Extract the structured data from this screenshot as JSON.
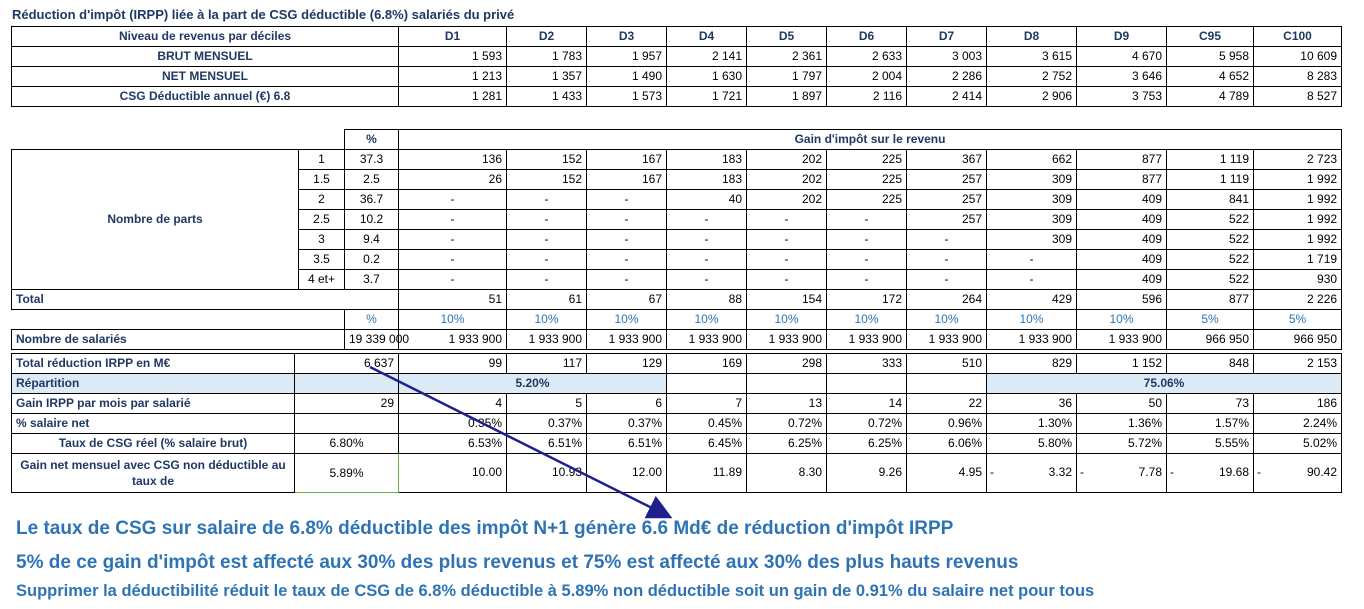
{
  "title": "Réduction d'impôt (IRPP) liée à la part de CSG déductible (6.8%) salariés du privé",
  "top_table": {
    "header_label": "Niveau de revenus par déciles",
    "columns": [
      "D1",
      "D2",
      "D3",
      "D4",
      "D5",
      "D6",
      "D7",
      "D8",
      "D9",
      "C95",
      "C100"
    ],
    "rows": [
      {
        "label": "BRUT MENSUEL",
        "values": [
          "1 593",
          "1 783",
          "1 957",
          "2 141",
          "2 361",
          "2 633",
          "3 003",
          "3 615",
          "4 670",
          "5 958",
          "10 609"
        ]
      },
      {
        "label": "NET MENSUEL",
        "values": [
          "1 213",
          "1 357",
          "1 490",
          "1 630",
          "1 797",
          "2 004",
          "2 286",
          "2 752",
          "3 646",
          "4 652",
          "8 283"
        ]
      },
      {
        "label": "CSG Déductible annuel (€) 6.8",
        "values": [
          "1 281",
          "1 433",
          "1 573",
          "1 721",
          "1 897",
          "2 116",
          "2 414",
          "2 906",
          "3 753",
          "4 789",
          "8 527"
        ]
      }
    ]
  },
  "parts_table": {
    "pct_header": "%",
    "gain_header": "Gain d'impôt sur le revenu",
    "group_label": "Nombre de parts",
    "rows": [
      {
        "parts": "1",
        "pct": "37.3",
        "values": [
          "136",
          "152",
          "167",
          "183",
          "202",
          "225",
          "367",
          "662",
          "877",
          "1 119",
          "2 723"
        ]
      },
      {
        "parts": "1.5",
        "pct": "2.5",
        "values": [
          "26",
          "152",
          "167",
          "183",
          "202",
          "225",
          "257",
          "309",
          "877",
          "1 119",
          "1 992"
        ]
      },
      {
        "parts": "2",
        "pct": "36.7",
        "values": [
          "-",
          "-",
          "-",
          "40",
          "202",
          "225",
          "257",
          "309",
          "409",
          "841",
          "1 992"
        ]
      },
      {
        "parts": "2.5",
        "pct": "10.2",
        "values": [
          "-",
          "-",
          "-",
          "-",
          "-",
          "-",
          "257",
          "309",
          "409",
          "522",
          "1 992"
        ]
      },
      {
        "parts": "3",
        "pct": "9.4",
        "values": [
          "-",
          "-",
          "-",
          "-",
          "-",
          "-",
          "-",
          "309",
          "409",
          "522",
          "1 992"
        ]
      },
      {
        "parts": "3.5",
        "pct": "0.2",
        "values": [
          "-",
          "-",
          "-",
          "-",
          "-",
          "-",
          "-",
          "-",
          "409",
          "522",
          "1 719"
        ]
      },
      {
        "parts": "4 et+",
        "pct": "3.7",
        "values": [
          "-",
          "-",
          "-",
          "-",
          "-",
          "-",
          "-",
          "-",
          "409",
          "522",
          "930"
        ]
      }
    ],
    "total_label": "Total",
    "total_values": [
      "51",
      "61",
      "67",
      "88",
      "154",
      "172",
      "264",
      "429",
      "596",
      "877",
      "2 226"
    ]
  },
  "bottom_table": {
    "pct_header": "%",
    "pct_values": [
      "10%",
      "10%",
      "10%",
      "10%",
      "10%",
      "10%",
      "10%",
      "10%",
      "10%",
      "5%",
      "5%"
    ],
    "nb_salaries_label": "Nombre de salariés",
    "nb_salaries_total": "19 339 000",
    "nb_salaries_values": [
      "1 933 900",
      "1 933 900",
      "1 933 900",
      "1 933 900",
      "1 933 900",
      "1 933 900",
      "1 933 900",
      "1 933 900",
      "1 933 900",
      "966 950",
      "966 950"
    ],
    "total_reduction_label": "Total réduction IRPP en M€",
    "total_reduction_total": "6 637",
    "total_reduction_values": [
      "99",
      "117",
      "129",
      "169",
      "298",
      "333",
      "510",
      "829",
      "1 152",
      "848",
      "2 153"
    ],
    "repartition_label": "Répartition",
    "repartition_low": "5.20%",
    "repartition_high": "75.06%",
    "gain_mois_label": "Gain IRPP par mois par salarié",
    "gain_mois_total": "29",
    "gain_mois_values": [
      "4",
      "5",
      "6",
      "7",
      "13",
      "14",
      "22",
      "36",
      "50",
      "73",
      "186"
    ],
    "pct_net_label": "% salaire net",
    "pct_net_values": [
      "0.35%",
      "0.37%",
      "0.37%",
      "0.45%",
      "0.72%",
      "0.72%",
      "0.96%",
      "1.30%",
      "1.36%",
      "1.57%",
      "2.24%"
    ],
    "taux_label": "Taux de CSG réel (% salaire brut)",
    "taux_total": "6.80%",
    "taux_values": [
      "6.53%",
      "6.51%",
      "6.51%",
      "6.45%",
      "6.25%",
      "6.25%",
      "6.06%",
      "5.80%",
      "5.72%",
      "5.55%",
      "5.02%"
    ],
    "gain_net_label": "Gain net mensuel avec CSG  non déductible au taux de",
    "gain_net_total": "5.89%",
    "gain_net_values": [
      "10.00",
      "10.93",
      "12.00",
      "11.89",
      "8.30",
      "9.26",
      "4.95",
      "3.32",
      "7.78",
      "19.68",
      "90.42"
    ],
    "gain_net_signs": [
      "",
      "",
      "",
      "",
      "",
      "",
      "",
      "-",
      "-",
      "-",
      "-"
    ]
  },
  "footer": {
    "line1": "Le taux de CSG sur salaire de 6.8% déductible des impôt N+1 génère 6.6 Md€ de réduction d'impôt IRPP",
    "line2": "5% de ce gain d'impôt est  affecté aux 30% des plus revenus et 75% est affecté aux 30% des plus hauts revenus",
    "line3": "Supprimer la déductibilité  réduit le taux de CSG de 6.8% déductible à 5.89% non déductible soit un gain de 0.91% du salaire net  pour tous"
  },
  "colors": {
    "title": "#1f3864",
    "accent_blue": "#2e74b5",
    "shade": "#ddebf7",
    "arrow": "#1f1f8f"
  }
}
